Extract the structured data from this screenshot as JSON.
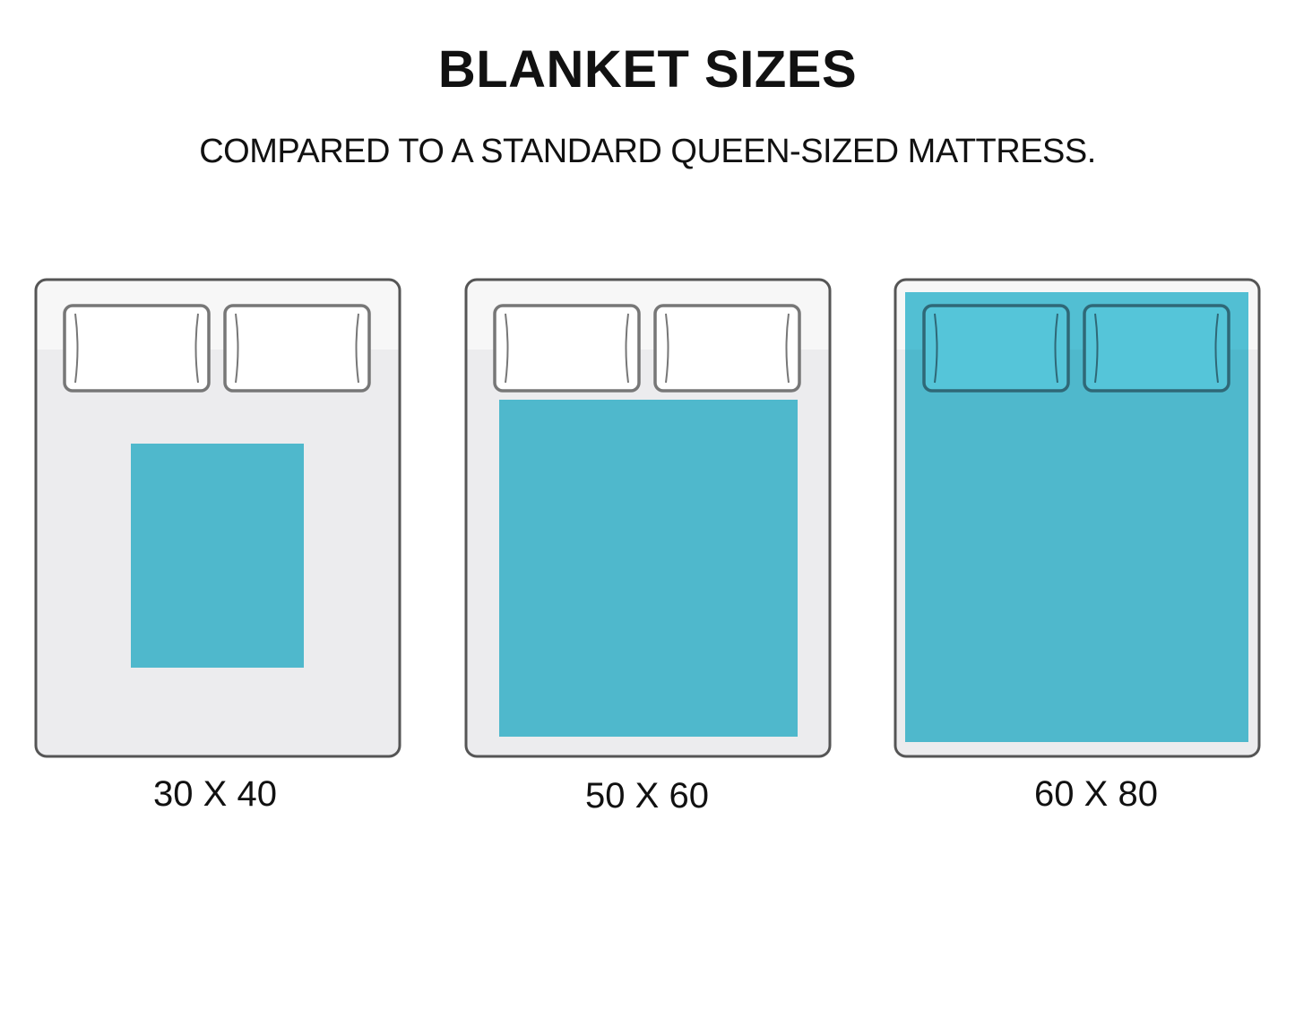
{
  "header": {
    "title": "BLANKET SIZES",
    "subtitle": "COMPARED TO A STANDARD QUEEN-SIZED MATTRESS."
  },
  "beds": [
    {
      "label": "30 X 40",
      "blanket_width_in": 30,
      "blanket_length_in": 40
    },
    {
      "label": "50 X 60",
      "blanket_width_in": 50,
      "blanket_length_in": 60
    },
    {
      "label": "60 X 80",
      "blanket_width_in": 60,
      "blanket_length_in": 80
    }
  ],
  "colors": {
    "blanket": "#4fb8cc",
    "mattress": "#ececee",
    "mattress_top": "#f7f7f7",
    "outline": "#555555",
    "pillow_on_blanket": "#55c5d9",
    "pillow_outline_on_blanket": "#2f6877"
  }
}
